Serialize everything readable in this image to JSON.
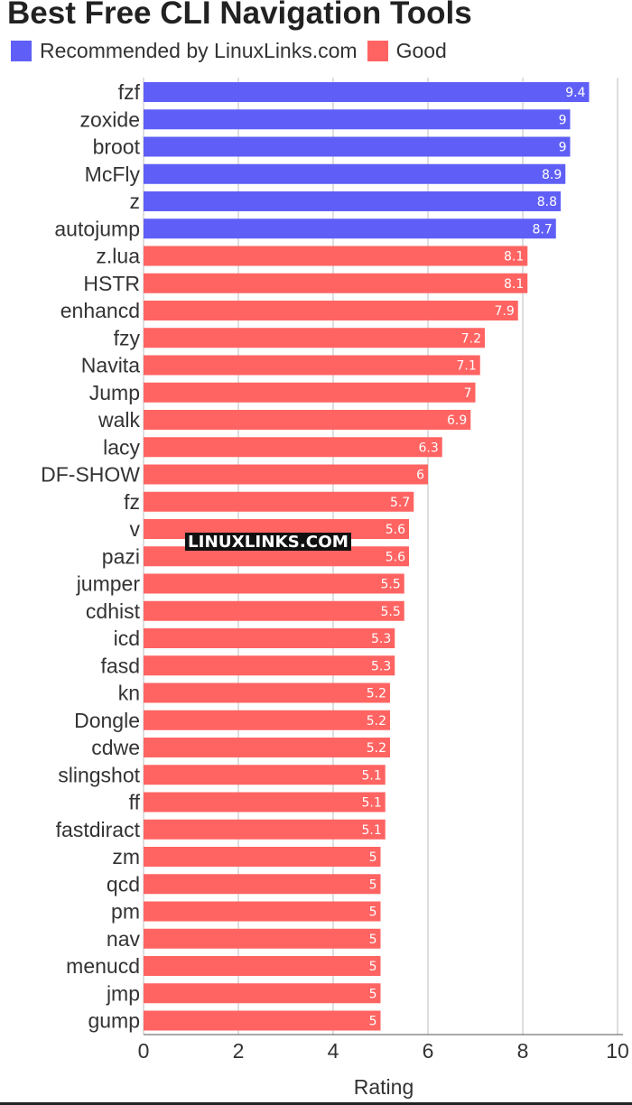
{
  "colors": {
    "recommended": "#5f5ff7",
    "good": "#ff6462",
    "grid": "#bdbdbd",
    "text": "#333333"
  },
  "legend": [
    {
      "label": "Recommended by LinuxLinks.com",
      "color": "#5f5ff7"
    },
    {
      "label": "Good",
      "color": "#ff6462"
    }
  ],
  "watermark": "LINUXLINKS.COM",
  "chart_data": {
    "type": "bar",
    "orientation": "horizontal",
    "title": "Best Free CLI Navigation Tools",
    "xlabel": "Rating",
    "ylabel": "",
    "xlim": [
      0,
      10
    ],
    "xticks": [
      0,
      2,
      4,
      6,
      8,
      10
    ],
    "grid": "vertical",
    "legend_position": "top-left",
    "categories": [
      "fzf",
      "zoxide",
      "broot",
      "McFly",
      "z",
      "autojump",
      "z.lua",
      "HSTR",
      "enhancd",
      "fzy",
      "Navita",
      "Jump",
      "walk",
      "lacy",
      "DF-SHOW",
      "fz",
      "v",
      "pazi",
      "jumper",
      "cdhist",
      "icd",
      "fasd",
      "kn",
      "Dongle",
      "cdwe",
      "slingshot",
      "ff",
      "fastdiract",
      "zm",
      "qcd",
      "pm",
      "nav",
      "menucd",
      "jmp",
      "gump"
    ],
    "values": [
      9.4,
      9,
      9,
      8.9,
      8.8,
      8.7,
      8.1,
      8.1,
      7.9,
      7.2,
      7.1,
      7,
      6.9,
      6.3,
      6,
      5.7,
      5.6,
      5.6,
      5.5,
      5.5,
      5.3,
      5.3,
      5.2,
      5.2,
      5.2,
      5.1,
      5.1,
      5.1,
      5,
      5,
      5,
      5,
      5,
      5,
      5
    ],
    "groups": [
      "Recommended by LinuxLinks.com",
      "Recommended by LinuxLinks.com",
      "Recommended by LinuxLinks.com",
      "Recommended by LinuxLinks.com",
      "Recommended by LinuxLinks.com",
      "Recommended by LinuxLinks.com",
      "Good",
      "Good",
      "Good",
      "Good",
      "Good",
      "Good",
      "Good",
      "Good",
      "Good",
      "Good",
      "Good",
      "Good",
      "Good",
      "Good",
      "Good",
      "Good",
      "Good",
      "Good",
      "Good",
      "Good",
      "Good",
      "Good",
      "Good",
      "Good",
      "Good",
      "Good",
      "Good",
      "Good",
      "Good"
    ]
  }
}
